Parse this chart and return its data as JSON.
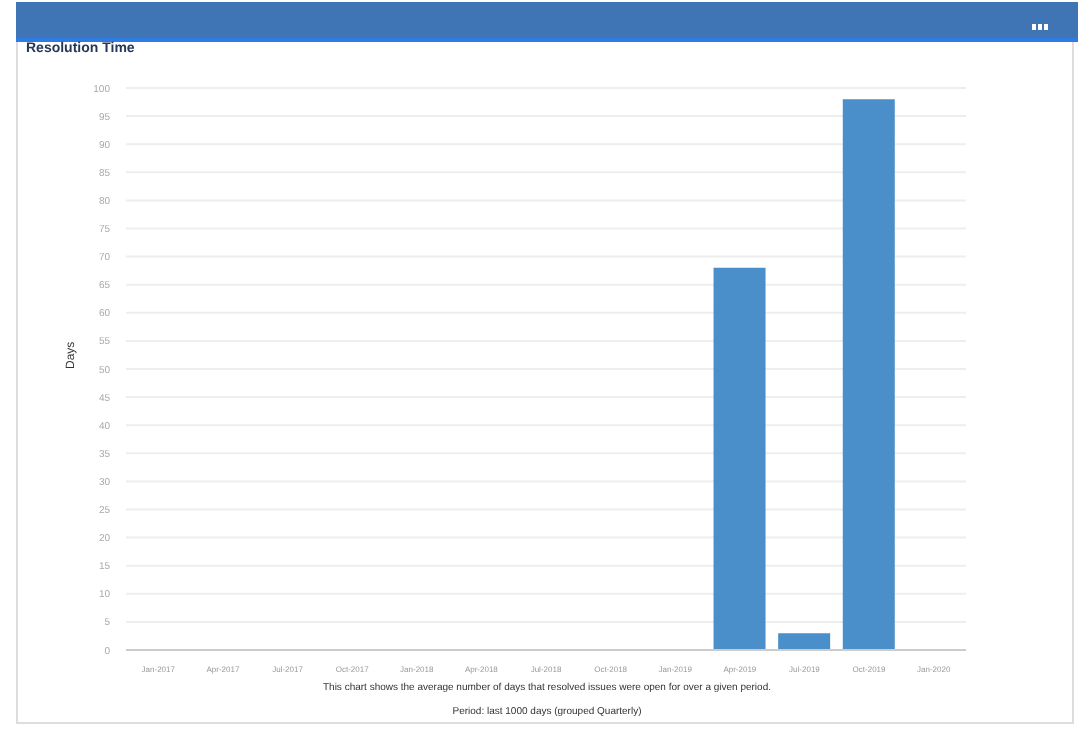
{
  "chart_data": {
    "type": "bar",
    "title": "Resolution Time",
    "ylabel": "Days",
    "categories": [
      "Jan-2017",
      "Apr-2017",
      "Jul-2017",
      "Oct-2017",
      "Jan-2018",
      "Apr-2018",
      "Jul-2018",
      "Oct-2018",
      "Jan-2019",
      "Apr-2019",
      "Jul-2019",
      "Oct-2019",
      "Jan-2020"
    ],
    "values": [
      null,
      null,
      null,
      null,
      null,
      null,
      null,
      null,
      null,
      68,
      3,
      98,
      null
    ],
    "color": "#4a8fca",
    "ylim": [
      0,
      100
    ],
    "yticks": [
      0,
      5,
      10,
      15,
      20,
      25,
      30,
      35,
      40,
      45,
      50,
      55,
      60,
      65,
      70,
      75,
      80,
      85,
      90,
      95,
      100
    ],
    "grid": "y",
    "legend": false,
    "annotations": [
      "This chart shows the average number of days that resolved issues were open for over a given period.",
      "Period: last 1000 days (grouped Quarterly)"
    ]
  }
}
